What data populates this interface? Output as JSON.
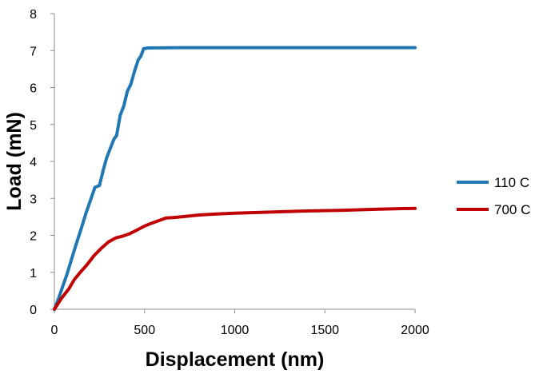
{
  "chart_data": {
    "type": "line",
    "title": "",
    "xlabel": "Displacement (nm)",
    "ylabel": "Load (mN)",
    "xlim": [
      0,
      2000
    ],
    "ylim": [
      0,
      8
    ],
    "x_ticks": [
      "0",
      "500",
      "1000",
      "1500",
      "2000"
    ],
    "y_ticks": [
      "0",
      "1",
      "2",
      "3",
      "4",
      "5",
      "6",
      "7",
      "8"
    ],
    "grid": false,
    "legend_position": "right",
    "series": [
      {
        "name": "110 C",
        "color": "#1f77b4",
        "points": [
          [
            0,
            0
          ],
          [
            20,
            0.25
          ],
          [
            45,
            0.6
          ],
          [
            70,
            0.95
          ],
          [
            95,
            1.35
          ],
          [
            120,
            1.75
          ],
          [
            150,
            2.2
          ],
          [
            175,
            2.6
          ],
          [
            200,
            2.95
          ],
          [
            225,
            3.3
          ],
          [
            250,
            3.35
          ],
          [
            270,
            3.75
          ],
          [
            290,
            4.1
          ],
          [
            310,
            4.35
          ],
          [
            330,
            4.6
          ],
          [
            345,
            4.7
          ],
          [
            365,
            5.25
          ],
          [
            385,
            5.5
          ],
          [
            405,
            5.9
          ],
          [
            425,
            6.1
          ],
          [
            445,
            6.45
          ],
          [
            465,
            6.75
          ],
          [
            480,
            6.85
          ],
          [
            495,
            7.05
          ],
          [
            520,
            7.07
          ],
          [
            700,
            7.08
          ],
          [
            1000,
            7.08
          ],
          [
            1500,
            7.08
          ],
          [
            2000,
            7.08
          ]
        ]
      },
      {
        "name": "700 C",
        "color": "#c00000",
        "points": [
          [
            0,
            0
          ],
          [
            40,
            0.3
          ],
          [
            80,
            0.55
          ],
          [
            110,
            0.8
          ],
          [
            140,
            0.98
          ],
          [
            180,
            1.2
          ],
          [
            220,
            1.45
          ],
          [
            260,
            1.65
          ],
          [
            300,
            1.82
          ],
          [
            340,
            1.93
          ],
          [
            380,
            1.98
          ],
          [
            420,
            2.05
          ],
          [
            460,
            2.15
          ],
          [
            500,
            2.25
          ],
          [
            540,
            2.33
          ],
          [
            580,
            2.4
          ],
          [
            620,
            2.47
          ],
          [
            660,
            2.48
          ],
          [
            700,
            2.5
          ],
          [
            800,
            2.55
          ],
          [
            900,
            2.58
          ],
          [
            1000,
            2.6
          ],
          [
            1200,
            2.63
          ],
          [
            1400,
            2.66
          ],
          [
            1600,
            2.68
          ],
          [
            1800,
            2.71
          ],
          [
            2000,
            2.73
          ]
        ]
      }
    ]
  }
}
